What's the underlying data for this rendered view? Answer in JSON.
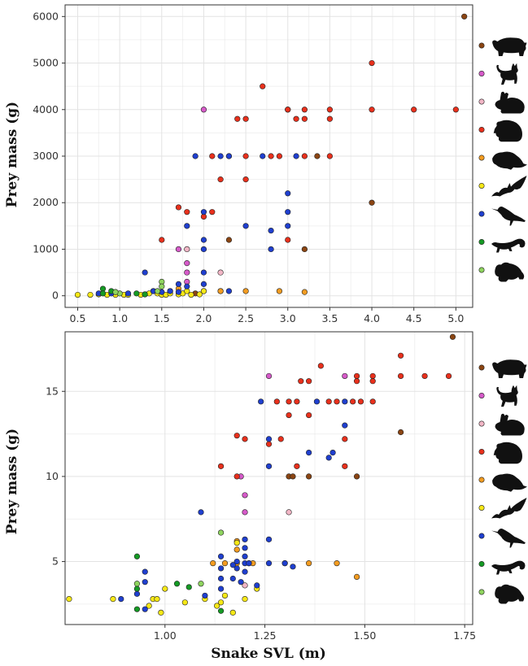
{
  "chart_data": [
    {
      "type": "scatter",
      "title": "",
      "xlabel": "",
      "ylabel": "Prey mass (g)",
      "xlim": [
        0.35,
        5.2
      ],
      "ylim": [
        -250,
        6250
      ],
      "xticks": [
        "0.5",
        "1.0",
        "1.5",
        "2.0",
        "2.5",
        "3.0",
        "3.5",
        "4.0",
        "4.5",
        "5.0"
      ],
      "xtick_values": [
        0.5,
        1,
        1.5,
        2,
        2.5,
        3,
        3.5,
        4,
        4.5,
        5
      ],
      "yticks": [
        "0",
        "1000",
        "2000",
        "3000",
        "4000",
        "5000",
        "6000"
      ],
      "ytick_values": [
        0,
        1000,
        2000,
        3000,
        4000,
        5000,
        6000
      ],
      "grid": true,
      "legend": "right, silhouette icons with colored markers",
      "series": [
        {
          "icon": "pig-silhouette-icon",
          "color": "#8B4513",
          "points": [
            [
              5.1,
              6000
            ],
            [
              4.0,
              2000
            ],
            [
              3.35,
              3000
            ],
            [
              3.2,
              1000
            ],
            [
              2.3,
              1200
            ],
            [
              1.9,
              50
            ],
            [
              2.2,
              100
            ]
          ]
        },
        {
          "icon": "cat-silhouette-icon",
          "color": "#d65ac9",
          "points": [
            [
              2.0,
              4000
            ],
            [
              3.0,
              4000
            ],
            [
              1.7,
              1000
            ],
            [
              1.8,
              700
            ],
            [
              1.8,
              500
            ],
            [
              1.8,
              300
            ]
          ]
        },
        {
          "icon": "rabbit-silhouette-icon",
          "color": "#f2b6c6",
          "points": [
            [
              2.2,
              500
            ],
            [
              1.8,
              1000
            ]
          ]
        },
        {
          "icon": "rodent-silhouette-icon",
          "color": "#e8301c",
          "points": [
            [
              4.0,
              5000
            ],
            [
              2.7,
              4500
            ],
            [
              3.0,
              4000
            ],
            [
              3.2,
              4000
            ],
            [
              3.5,
              4000
            ],
            [
              4.0,
              4000
            ],
            [
              4.5,
              4000
            ],
            [
              5.0,
              4000
            ],
            [
              2.4,
              3800
            ],
            [
              2.5,
              3800
            ],
            [
              3.1,
              3800
            ],
            [
              3.2,
              3800
            ],
            [
              3.5,
              3800
            ],
            [
              2.1,
              3000
            ],
            [
              2.3,
              3000
            ],
            [
              2.5,
              3000
            ],
            [
              2.8,
              3000
            ],
            [
              2.9,
              3000
            ],
            [
              3.2,
              3000
            ],
            [
              3.5,
              3000
            ],
            [
              2.2,
              2500
            ],
            [
              2.5,
              2500
            ],
            [
              1.7,
              1900
            ],
            [
              1.8,
              1800
            ],
            [
              2.1,
              1800
            ],
            [
              2.0,
              1700
            ],
            [
              1.5,
              1200
            ],
            [
              3.0,
              1200
            ]
          ]
        },
        {
          "icon": "small-rodent-silhouette-icon",
          "color": "#f39c21",
          "points": [
            [
              1.4,
              100
            ],
            [
              1.6,
              100
            ],
            [
              1.7,
              150
            ],
            [
              2.0,
              100
            ],
            [
              2.2,
              100
            ],
            [
              2.5,
              100
            ],
            [
              2.9,
              100
            ],
            [
              3.2,
              80
            ],
            [
              1.5,
              50
            ]
          ]
        },
        {
          "icon": "bat-silhouette-icon",
          "color": "#f6e816",
          "points": [
            [
              0.5,
              20
            ],
            [
              0.65,
              20
            ],
            [
              0.75,
              30
            ],
            [
              0.85,
              20
            ],
            [
              0.95,
              20
            ],
            [
              1.05,
              20
            ],
            [
              1.1,
              20
            ],
            [
              1.25,
              20
            ],
            [
              1.3,
              30
            ],
            [
              1.35,
              50
            ],
            [
              1.45,
              50
            ],
            [
              1.5,
              20
            ],
            [
              1.55,
              20
            ],
            [
              1.6,
              50
            ],
            [
              1.7,
              30
            ],
            [
              1.75,
              50
            ],
            [
              1.8,
              100
            ],
            [
              1.85,
              20
            ],
            [
              1.95,
              30
            ],
            [
              2.0,
              100
            ]
          ]
        },
        {
          "icon": "bird-silhouette-icon",
          "color": "#1f3fcf",
          "points": [
            [
              1.9,
              3000
            ],
            [
              2.2,
              3000
            ],
            [
              2.3,
              3000
            ],
            [
              2.7,
              3000
            ],
            [
              3.1,
              3000
            ],
            [
              3.0,
              2200
            ],
            [
              2.0,
              1800
            ],
            [
              3.0,
              1800
            ],
            [
              2.5,
              1500
            ],
            [
              3.0,
              1500
            ],
            [
              1.8,
              1500
            ],
            [
              2.8,
              1400
            ],
            [
              2.0,
              1200
            ],
            [
              2.8,
              1000
            ],
            [
              2.0,
              1000
            ],
            [
              1.3,
              500
            ],
            [
              2.0,
              500
            ],
            [
              1.7,
              250
            ],
            [
              2.0,
              250
            ],
            [
              1.8,
              200
            ],
            [
              2.3,
              100
            ],
            [
              1.6,
              100
            ],
            [
              1.4,
              100
            ],
            [
              1.1,
              50
            ],
            [
              0.75,
              50
            ],
            [
              0.9,
              50
            ],
            [
              0.95,
              80
            ],
            [
              1.5,
              80
            ],
            [
              1.7,
              80
            ]
          ]
        },
        {
          "icon": "lizard-silhouette-icon",
          "color": "#159a24",
          "points": [
            [
              0.8,
              150
            ],
            [
              0.9,
              100
            ],
            [
              1.2,
              50
            ],
            [
              1.3,
              30
            ],
            [
              0.8,
              50
            ]
          ]
        },
        {
          "icon": "frog-silhouette-icon",
          "color": "#8fd45f",
          "points": [
            [
              1.5,
              300
            ],
            [
              1.0,
              50
            ],
            [
              1.45,
              100
            ],
            [
              1.5,
              200
            ],
            [
              0.95,
              80
            ]
          ]
        }
      ]
    },
    {
      "type": "scatter",
      "title": "",
      "xlabel": "Snake SVL (m)",
      "ylabel": "Prey mass (g)",
      "xlim": [
        0.75,
        1.77
      ],
      "ylim": [
        1.3,
        18.5
      ],
      "xticks": [
        "1.00",
        "1.25",
        "1.50",
        "1.75"
      ],
      "xtick_values": [
        1,
        1.25,
        1.5,
        1.75
      ],
      "yticks": [
        "5",
        "10",
        "15"
      ],
      "ytick_values": [
        5,
        10,
        15
      ],
      "grid": true,
      "legend": "right, silhouette icons with colored markers",
      "series": [
        {
          "icon": "pig-silhouette-icon",
          "color": "#8B4513",
          "points": [
            [
              1.72,
              18.2
            ],
            [
              1.59,
              12.6
            ],
            [
              1.48,
              10.0
            ],
            [
              1.36,
              10.0
            ],
            [
              1.31,
              10.0
            ],
            [
              1.32,
              10.0
            ]
          ]
        },
        {
          "icon": "cat-silhouette-icon",
          "color": "#d65ac9",
          "points": [
            [
              1.26,
              15.9
            ],
            [
              1.45,
              15.9
            ],
            [
              1.19,
              10.0
            ],
            [
              1.2,
              8.9
            ],
            [
              1.2,
              7.9
            ]
          ]
        },
        {
          "icon": "rabbit-silhouette-icon",
          "color": "#f2b6c6",
          "points": [
            [
              1.31,
              7.9
            ],
            [
              1.2,
              3.6
            ]
          ]
        },
        {
          "icon": "rodent-silhouette-icon",
          "color": "#e8301c",
          "points": [
            [
              1.59,
              17.1
            ],
            [
              1.39,
              16.5
            ],
            [
              1.48,
              15.9
            ],
            [
              1.52,
              15.9
            ],
            [
              1.59,
              15.9
            ],
            [
              1.65,
              15.9
            ],
            [
              1.71,
              15.9
            ],
            [
              1.34,
              15.6
            ],
            [
              1.36,
              15.6
            ],
            [
              1.48,
              15.6
            ],
            [
              1.52,
              15.6
            ],
            [
              1.28,
              14.4
            ],
            [
              1.31,
              14.4
            ],
            [
              1.33,
              14.4
            ],
            [
              1.41,
              14.4
            ],
            [
              1.43,
              14.4
            ],
            [
              1.47,
              14.4
            ],
            [
              1.49,
              14.4
            ],
            [
              1.52,
              14.4
            ],
            [
              1.31,
              13.6
            ],
            [
              1.36,
              13.6
            ],
            [
              1.18,
              12.4
            ],
            [
              1.2,
              12.2
            ],
            [
              1.29,
              12.2
            ],
            [
              1.45,
              12.2
            ],
            [
              1.26,
              11.9
            ],
            [
              1.14,
              10.6
            ],
            [
              1.33,
              10.6
            ],
            [
              1.45,
              10.6
            ],
            [
              1.18,
              10.0
            ]
          ]
        },
        {
          "icon": "small-rodent-silhouette-icon",
          "color": "#f39c21",
          "points": [
            [
              1.12,
              4.9
            ],
            [
              1.15,
              4.9
            ],
            [
              1.18,
              4.9
            ],
            [
              1.22,
              4.9
            ],
            [
              1.3,
              4.9
            ],
            [
              1.36,
              4.9
            ],
            [
              1.43,
              4.9
            ],
            [
              1.48,
              4.1
            ],
            [
              1.18,
              6.2
            ],
            [
              1.18,
              5.7
            ]
          ]
        },
        {
          "icon": "bat-silhouette-icon",
          "color": "#f6e816",
          "points": [
            [
              0.76,
              2.8
            ],
            [
              0.87,
              2.8
            ],
            [
              0.97,
              2.8
            ],
            [
              0.98,
              2.8
            ],
            [
              1.0,
              3.4
            ],
            [
              0.96,
              2.4
            ],
            [
              0.99,
              2.0
            ],
            [
              1.05,
              2.6
            ],
            [
              1.1,
              2.8
            ],
            [
              1.13,
              2.4
            ],
            [
              1.14,
              2.6
            ],
            [
              1.17,
              2.0
            ],
            [
              1.2,
              2.8
            ],
            [
              1.23,
              3.4
            ],
            [
              1.15,
              3.0
            ],
            [
              1.18,
              6.1
            ],
            [
              1.21,
              4.9
            ]
          ]
        },
        {
          "icon": "bird-silhouette-icon",
          "color": "#1f3fcf",
          "points": [
            [
              1.24,
              14.4
            ],
            [
              1.38,
              14.4
            ],
            [
              1.45,
              14.4
            ],
            [
              1.45,
              13.0
            ],
            [
              1.26,
              12.2
            ],
            [
              1.42,
              11.4
            ],
            [
              1.36,
              11.4
            ],
            [
              1.41,
              11.1
            ],
            [
              1.26,
              10.6
            ],
            [
              1.09,
              7.9
            ],
            [
              1.2,
              6.3
            ],
            [
              1.26,
              6.3
            ],
            [
              1.2,
              5.8
            ],
            [
              1.2,
              5.3
            ],
            [
              1.14,
              5.3
            ],
            [
              1.18,
              5.0
            ],
            [
              1.2,
              4.9
            ],
            [
              1.26,
              4.9
            ],
            [
              1.3,
              4.9
            ],
            [
              1.18,
              4.6
            ],
            [
              1.14,
              4.6
            ],
            [
              1.17,
              4.8
            ],
            [
              1.2,
              4.4
            ],
            [
              1.14,
              4.0
            ],
            [
              1.17,
              4.0
            ],
            [
              1.19,
              3.8
            ],
            [
              1.14,
              3.4
            ],
            [
              1.23,
              3.6
            ],
            [
              1.21,
              4.9
            ],
            [
              0.95,
              4.4
            ],
            [
              0.95,
              3.8
            ],
            [
              0.93,
              3.1
            ],
            [
              0.89,
              2.8
            ],
            [
              0.95,
              2.2
            ],
            [
              1.1,
              3.0
            ],
            [
              1.32,
              4.7
            ]
          ]
        },
        {
          "icon": "lizard-silhouette-icon",
          "color": "#159a24",
          "points": [
            [
              0.93,
              5.3
            ],
            [
              0.93,
              3.4
            ],
            [
              0.93,
              2.2
            ],
            [
              1.03,
              3.7
            ],
            [
              1.06,
              3.5
            ],
            [
              1.14,
              2.1
            ]
          ]
        },
        {
          "icon": "frog-silhouette-icon",
          "color": "#8fd45f",
          "points": [
            [
              0.93,
              3.7
            ],
            [
              1.09,
              3.7
            ],
            [
              1.14,
              6.7
            ]
          ]
        }
      ]
    }
  ]
}
